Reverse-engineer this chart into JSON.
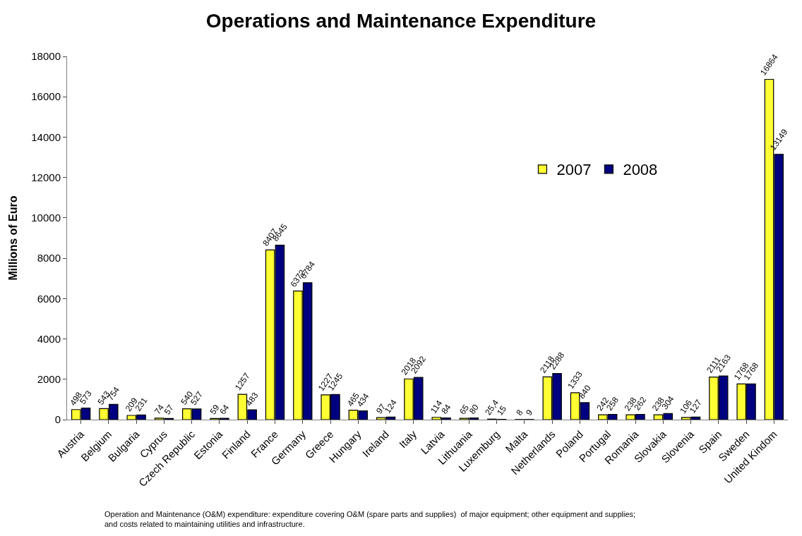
{
  "chart_data": {
    "type": "bar",
    "title": "Operations and Maintenance Expenditure",
    "ylabel": "Millions of Euro",
    "categories": [
      "Austria",
      "Belgium",
      "Bulgaria",
      "Cyprus",
      "Czech Republic",
      "Estonia",
      "Finland",
      "France",
      "Germany",
      "Greece",
      "Hungary",
      "Ireland",
      "Italy",
      "Latvia",
      "Lithuania",
      "Luxemburg",
      "Malta",
      "Netherlands",
      "Poland",
      "Portugal",
      "Romania",
      "Slovakia",
      "Slovenia",
      "Spain",
      "Sweden",
      "United Kindom"
    ],
    "series": [
      {
        "name": "2007",
        "color": "#ffff33",
        "values": [
          498,
          543,
          209,
          74,
          540,
          59,
          1257,
          8407,
          6372,
          1227,
          465,
          97,
          2018,
          114,
          65,
          25.4,
          8,
          2118,
          1333,
          242,
          238,
          238,
          106,
          2111,
          1768,
          16864
        ],
        "value_labels": [
          "498",
          "543",
          "209",
          "74",
          "540",
          "59",
          "1257",
          "8407",
          "6372",
          "1227",
          "465",
          "97",
          "2018",
          "114",
          "65",
          "25,4",
          "8",
          "2118",
          "1333",
          "242",
          "238",
          "238",
          "106",
          "2111",
          "1768",
          "16864"
        ]
      },
      {
        "name": "2008",
        "color": "#000080",
        "values": [
          573,
          754,
          231,
          57,
          527,
          64,
          483,
          8645,
          6784,
          1245,
          434,
          124,
          2092,
          84,
          80,
          15,
          9,
          2288,
          840,
          258,
          262,
          304,
          127,
          2163,
          1768,
          13149
        ],
        "value_labels": [
          "573",
          "754",
          "231",
          "57",
          "527",
          "64",
          "483",
          "8645",
          "6784",
          "1245",
          "434",
          "124",
          "2092",
          "84",
          "80",
          "15",
          "9",
          "2288",
          "840",
          "258",
          "262",
          "304",
          "127",
          "2163",
          "1768",
          "13149"
        ]
      }
    ],
    "ylim": [
      0,
      18000
    ],
    "yticks": [
      0,
      2000,
      4000,
      6000,
      8000,
      10000,
      12000,
      14000,
      16000,
      18000
    ],
    "grid": false,
    "legend": "top right",
    "annotations": [
      "Operation and Maintenance (O&M) expenditure: expenditure covering O&M (spare parts and supplies)  of major equipment; other equipment and supplies; and costs related to maintaining utilities and infrastructure."
    ]
  }
}
